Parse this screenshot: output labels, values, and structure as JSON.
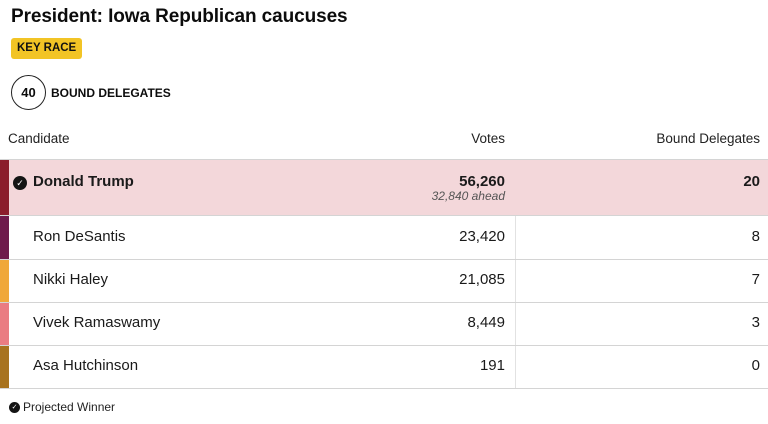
{
  "header": {
    "title": "President: Iowa Republican caucuses",
    "badge": "KEY RACE",
    "delegates_count": "40",
    "delegates_label": "BOUND DELEGATES"
  },
  "table": {
    "columns": [
      "Candidate",
      "Votes",
      "Bound Delegates"
    ],
    "rows": [
      {
        "name": "Donald Trump",
        "votes": "56,260",
        "delegates": "20",
        "ahead": "32,840 ahead",
        "winner": true,
        "color": "#8b1d2c"
      },
      {
        "name": "Ron DeSantis",
        "votes": "23,420",
        "delegates": "8",
        "color": "#6e1a4b"
      },
      {
        "name": "Nikki Haley",
        "votes": "21,085",
        "delegates": "7",
        "color": "#f0a83a"
      },
      {
        "name": "Vivek Ramaswamy",
        "votes": "8,449",
        "delegates": "3",
        "color": "#ea7c82"
      },
      {
        "name": "Asa Hutchinson",
        "votes": "191",
        "delegates": "0",
        "color": "#a8731f"
      }
    ]
  },
  "footer": {
    "legend": "Projected Winner",
    "icon": "check-circle-icon"
  },
  "colors": {
    "badge": "#f2c425",
    "winner_row": "#f3d7da"
  }
}
